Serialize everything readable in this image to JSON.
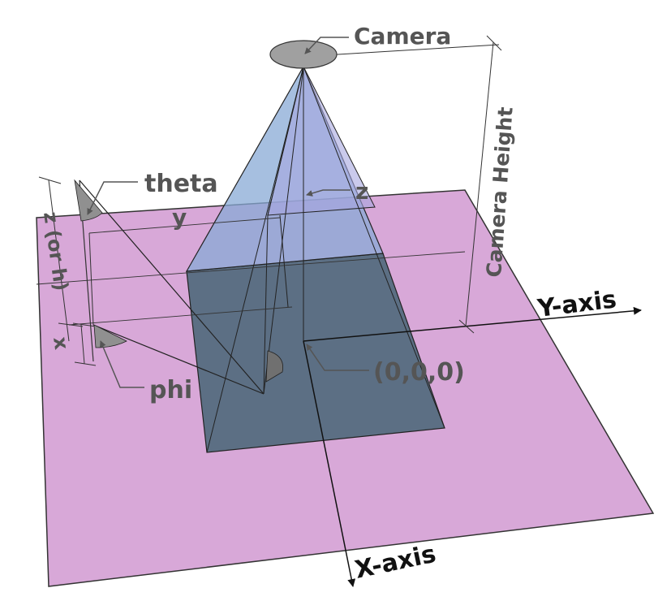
{
  "labels": {
    "camera": "Camera",
    "camera_height": "Camera Height",
    "theta": "theta",
    "phi": "phi",
    "z_or_h": "z (or h)",
    "y": "y",
    "x": "x",
    "z": "z",
    "origin": "(0,0,0)",
    "y_axis": "Y-axis",
    "x_axis": "X-axis"
  },
  "colors": {
    "ground_plane": "#d8a8d8",
    "frustum_upper": "#8ab0d8",
    "frustum_lower": "#5a6e82",
    "camera_body": "#a0a0a0",
    "angle_marker": "#909090",
    "label_text": "#555555",
    "axis_text": "#111111"
  }
}
